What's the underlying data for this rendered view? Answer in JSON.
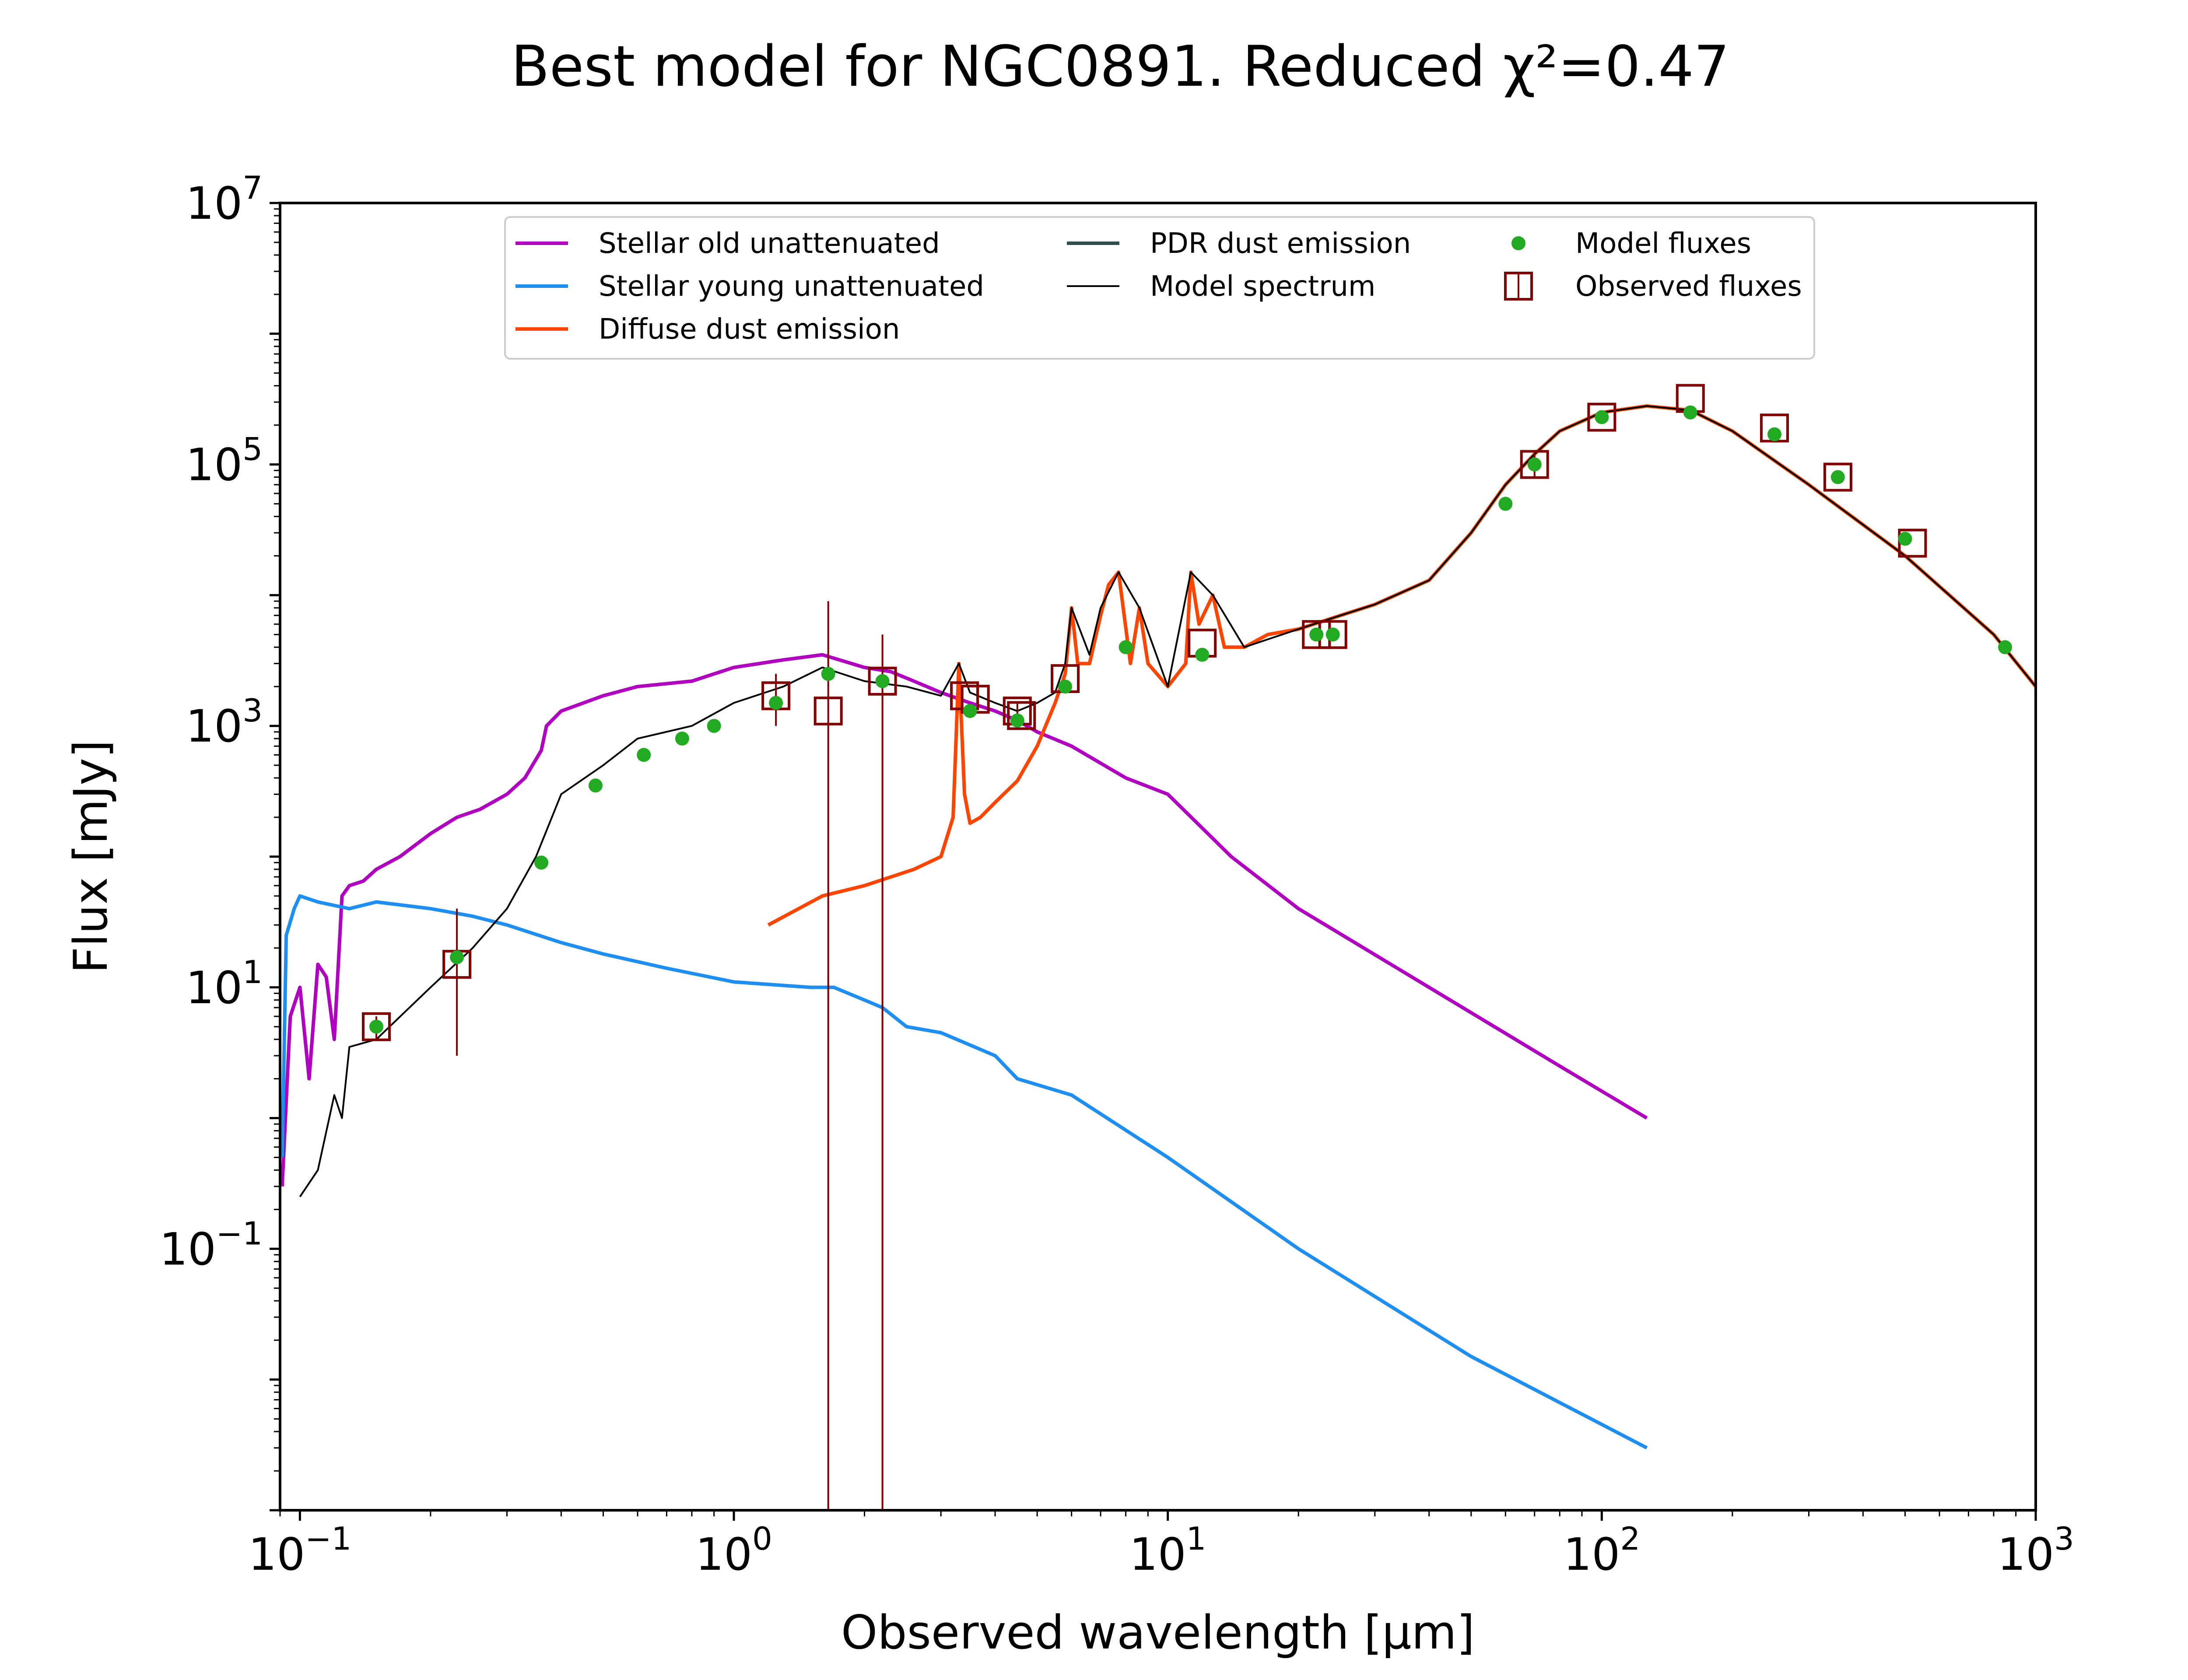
{
  "chart_data": {
    "type": "line",
    "title": "Best model for NGC0891. Reduced χ²=0.47",
    "xlabel": "Observed wavelength [μm]",
    "ylabel": "Flux [mJy]",
    "xscale": "log",
    "yscale": "log",
    "xlim": [
      0.09,
      1000
    ],
    "ylim": [
      0.001,
      10000000
    ],
    "grid": false,
    "legend_position": "top",
    "x_ticks": [
      {
        "value": 0.1,
        "base": "10",
        "exp": "−1"
      },
      {
        "value": 1,
        "base": "10",
        "exp": "0"
      },
      {
        "value": 10,
        "base": "10",
        "exp": "1"
      },
      {
        "value": 100,
        "base": "10",
        "exp": "2"
      },
      {
        "value": 1000,
        "base": "10",
        "exp": "3"
      }
    ],
    "y_ticks": [
      {
        "value": 0.1,
        "base": "10",
        "exp": "−1"
      },
      {
        "value": 10,
        "base": "10",
        "exp": "1"
      },
      {
        "value": 1000,
        "base": "10",
        "exp": "3"
      },
      {
        "value": 100000,
        "base": "10",
        "exp": "5"
      },
      {
        "value": 10000000,
        "base": "10",
        "exp": "7"
      }
    ],
    "legend": [
      {
        "label": "Stellar old unattenuated",
        "color": "#b000c0",
        "marker": "line"
      },
      {
        "label": "Stellar young unattenuated",
        "color": "#1e8ff0",
        "marker": "line"
      },
      {
        "label": "Diffuse dust emission",
        "color": "#ff4500",
        "marker": "line"
      },
      {
        "label": "PDR dust emission",
        "color": "#2f4f4f",
        "marker": "line"
      },
      {
        "label": "Model spectrum",
        "color": "#000000",
        "marker": "thinline"
      },
      {
        "label": "Model fluxes",
        "color": "#22aa22",
        "marker": "dot"
      },
      {
        "label": "Observed fluxes",
        "color": "#800000",
        "marker": "square"
      }
    ],
    "series": [
      {
        "name": "Stellar old unattenuated",
        "color": "#b000c0",
        "x": [
          0.091,
          0.095,
          0.1,
          0.105,
          0.11,
          0.115,
          0.12,
          0.125,
          0.13,
          0.14,
          0.15,
          0.17,
          0.2,
          0.23,
          0.26,
          0.3,
          0.33,
          0.36,
          0.37,
          0.4,
          0.5,
          0.6,
          0.8,
          1.0,
          1.3,
          1.6,
          2.0,
          2.3,
          2.6,
          3.0,
          3.5,
          4.0,
          4.5,
          5.0,
          6.0,
          8.0,
          10,
          14,
          20,
          40,
          80,
          127
        ],
        "y": [
          0.3,
          6,
          10,
          2,
          15,
          12,
          4,
          50,
          60,
          65,
          80,
          100,
          150,
          200,
          230,
          300,
          400,
          650,
          1000,
          1300,
          1700,
          2000,
          2200,
          2800,
          3200,
          3500,
          2800,
          2600,
          2200,
          1800,
          1500,
          1300,
          1100,
          900,
          700,
          400,
          300,
          100,
          40,
          10,
          2.5,
          1
        ]
      },
      {
        "name": "Stellar young unattenuated",
        "color": "#1e8ff0",
        "x": [
          0.091,
          0.093,
          0.097,
          0.1,
          0.11,
          0.13,
          0.15,
          0.2,
          0.25,
          0.3,
          0.4,
          0.5,
          0.7,
          1.0,
          1.5,
          1.7,
          2.0,
          2.2,
          2.5,
          3.0,
          4.0,
          4.5,
          6.0,
          10,
          20,
          50,
          127
        ],
        "y": [
          0.5,
          25,
          40,
          50,
          45,
          40,
          45,
          40,
          35,
          30,
          22,
          18,
          14,
          11,
          10,
          10,
          8,
          7,
          5,
          4.5,
          3,
          2,
          1.5,
          0.5,
          0.1,
          0.015,
          0.003
        ]
      },
      {
        "name": "Diffuse dust emission",
        "color": "#ff4500",
        "x": [
          1.2,
          1.6,
          2.0,
          2.6,
          3.0,
          3.2,
          3.3,
          3.4,
          3.5,
          3.7,
          4.0,
          4.5,
          5.0,
          5.5,
          5.8,
          6.0,
          6.2,
          6.6,
          7.0,
          7.3,
          7.7,
          8.2,
          8.6,
          9.0,
          10,
          11,
          11.3,
          11.8,
          12.7,
          13.5,
          15,
          17,
          20,
          25,
          30,
          40,
          50,
          60,
          70,
          80,
          100,
          127,
          160,
          200,
          300,
          500,
          800,
          1000
        ],
        "y": [
          30,
          50,
          60,
          80,
          100,
          200,
          3000,
          300,
          180,
          200,
          260,
          380,
          700,
          1500,
          2500,
          8000,
          3000,
          3000,
          7000,
          12000,
          15000,
          3000,
          8000,
          3000,
          2000,
          3000,
          15000,
          6000,
          10000,
          4000,
          4000,
          5000,
          5500,
          7000,
          8500,
          13000,
          30000,
          70000,
          120000,
          180000,
          250000,
          280000,
          260000,
          180000,
          70000,
          20000,
          5000,
          2000
        ]
      },
      {
        "name": "Model spectrum",
        "color": "#000000",
        "x": [
          0.1,
          0.11,
          0.12,
          0.125,
          0.13,
          0.15,
          0.2,
          0.25,
          0.3,
          0.35,
          0.4,
          0.5,
          0.6,
          0.8,
          1.0,
          1.3,
          1.6,
          2.0,
          2.5,
          3.0,
          3.3,
          3.5,
          4.0,
          4.5,
          5.0,
          5.5,
          5.8,
          6.0,
          6.6,
          7.0,
          7.7,
          8.6,
          10,
          11.3,
          12.7,
          15,
          20,
          25,
          30,
          40,
          50,
          60,
          70,
          80,
          100,
          127,
          160,
          200,
          300,
          500,
          800,
          1000
        ],
        "y": [
          0.25,
          0.4,
          1.5,
          1,
          3.5,
          4,
          10,
          20,
          40,
          100,
          300,
          500,
          800,
          1000,
          1500,
          2000,
          2800,
          2200,
          2000,
          1700,
          3000,
          1800,
          1500,
          1300,
          1500,
          1800,
          3000,
          8000,
          3500,
          8000,
          15000,
          8000,
          2000,
          15000,
          10000,
          4000,
          5500,
          7000,
          8500,
          13000,
          30000,
          70000,
          120000,
          180000,
          250000,
          280000,
          260000,
          180000,
          70000,
          20000,
          5000,
          2000
        ]
      }
    ],
    "model_fluxes": {
      "color": "#22aa22",
      "x": [
        0.15,
        0.23,
        0.36,
        0.48,
        0.62,
        0.76,
        0.9,
        1.25,
        1.65,
        2.2,
        3.5,
        4.5,
        5.8,
        8.0,
        12,
        22,
        24,
        60,
        70,
        100,
        160,
        250,
        350,
        500,
        850
      ],
      "y": [
        5,
        17,
        90,
        350,
        600,
        800,
        1000,
        1500,
        2500,
        2200,
        1300,
        1100,
        2000,
        4000,
        3500,
        5000,
        5000,
        50000,
        100000,
        230000,
        250000,
        170000,
        80000,
        27000,
        4000
      ]
    },
    "observed_fluxes": {
      "color": "#800000",
      "x": [
        0.15,
        0.23,
        1.25,
        1.65,
        2.2,
        3.4,
        3.6,
        4.5,
        4.6,
        5.8,
        12,
        22,
        24,
        70,
        100,
        160,
        250,
        350,
        520
      ],
      "y": [
        5,
        15,
        1700,
        1300,
        2200,
        1700,
        1600,
        1300,
        1200,
        2300,
        4300,
        5000,
        5000,
        100000,
        230000,
        320000,
        190000,
        80000,
        25000
      ],
      "y_err_low": [
        4,
        3,
        1000,
        null,
        null,
        null,
        null,
        1100,
        null,
        null,
        null,
        null,
        null,
        80000,
        null,
        null,
        null,
        null,
        null
      ],
      "y_err_high": [
        6,
        40,
        2500,
        null,
        null,
        null,
        null,
        1500,
        null,
        null,
        null,
        null,
        null,
        120000,
        null,
        null,
        null,
        null,
        null
      ]
    },
    "upper_limit_lines": {
      "color": "#800000",
      "x": [
        1.65,
        2.2
      ],
      "y_top": [
        9000,
        5000
      ]
    }
  }
}
